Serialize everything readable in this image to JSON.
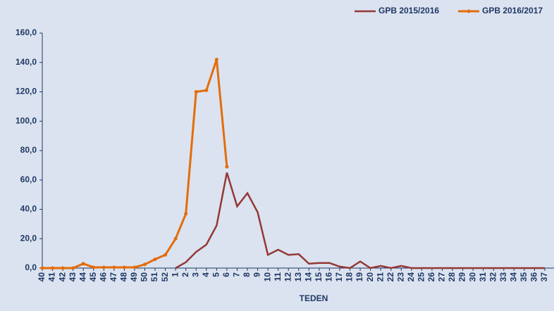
{
  "chart_data": {
    "type": "line",
    "x_label": "TEDEN",
    "categories": [
      "40",
      "41",
      "42",
      "43",
      "44",
      "45",
      "46",
      "47",
      "48",
      "49",
      "50",
      "51",
      "52",
      "1",
      "2",
      "3",
      "4",
      "5",
      "6",
      "7",
      "8",
      "9",
      "10",
      "11",
      "12",
      "13",
      "14",
      "15",
      "16",
      "17",
      "18",
      "19",
      "20",
      "21",
      "22",
      "23",
      "24",
      "25",
      "26",
      "27",
      "28",
      "29",
      "30",
      "31",
      "32",
      "33",
      "34",
      "35",
      "36",
      "37"
    ],
    "series": [
      {
        "name": "GPB 2015/2016",
        "color": "#953735",
        "marker": false,
        "values": [
          null,
          null,
          null,
          null,
          null,
          null,
          null,
          null,
          null,
          null,
          null,
          null,
          null,
          0,
          4,
          11,
          16,
          29,
          65,
          42,
          51,
          38,
          9,
          12.5,
          9,
          9.5,
          3,
          3.5,
          3.5,
          1,
          0,
          4.5,
          0,
          1.5,
          0,
          1.5,
          0,
          0,
          0,
          0,
          0,
          0,
          0,
          0,
          0,
          0,
          0,
          0,
          0,
          0
        ]
      },
      {
        "name": "GPB 2016/2017",
        "color": "#e46c0a",
        "marker": true,
        "values": [
          0,
          0,
          0,
          0,
          3,
          0.5,
          0.5,
          0.5,
          0.5,
          0.5,
          2.5,
          6,
          9,
          20,
          37,
          120,
          121,
          142,
          69,
          null,
          null,
          null,
          null,
          null,
          null,
          null,
          null,
          null,
          null,
          null,
          null,
          null,
          null,
          null,
          null,
          null,
          null,
          null,
          null,
          null,
          null,
          null,
          null,
          null,
          null,
          null,
          null,
          null,
          null,
          null
        ]
      }
    ],
    "ylim": [
      0,
      160
    ],
    "yticks": [
      {
        "value": 0,
        "label": "0,0"
      },
      {
        "value": 20,
        "label": "20,0"
      },
      {
        "value": 40,
        "label": "40,0"
      },
      {
        "value": 60,
        "label": "60,0"
      },
      {
        "value": 80,
        "label": "80,0"
      },
      {
        "value": 100,
        "label": "100,0"
      },
      {
        "value": 120,
        "label": "120,0"
      },
      {
        "value": 140,
        "label": "140,0"
      },
      {
        "value": 160,
        "label": "160,0"
      }
    ],
    "legend": "top-right"
  }
}
